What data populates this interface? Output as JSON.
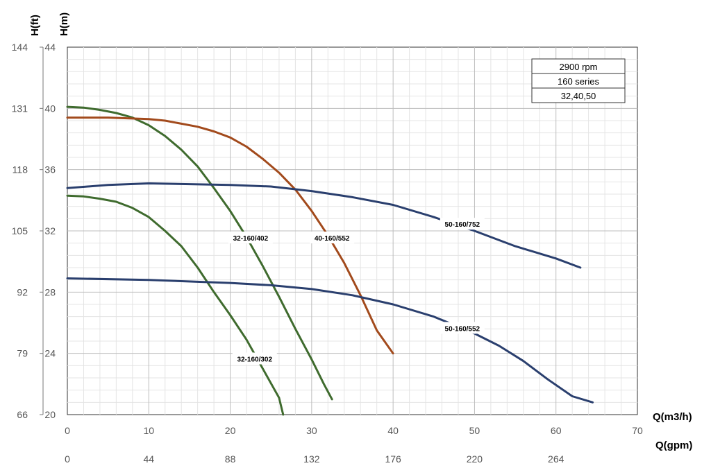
{
  "chart_data": {
    "type": "line",
    "x_axis_primary": {
      "label": "Q(m3/h)",
      "ticks": [
        "0",
        "10",
        "20",
        "30",
        "40",
        "50",
        "60",
        "70"
      ],
      "range": [
        0,
        70
      ]
    },
    "x_axis_secondary": {
      "label": "Q(gpm)",
      "ticks": [
        "0",
        "44",
        "88",
        "132",
        "176",
        "220",
        "264"
      ]
    },
    "y_axis_primary": {
      "label": "H(m)",
      "ticks": [
        "20",
        "24",
        "28",
        "32",
        "36",
        "40",
        "44"
      ],
      "range": [
        20,
        44
      ]
    },
    "y_axis_secondary": {
      "label": "H(ft)",
      "ticks": [
        "66",
        "79",
        "92",
        "105",
        "118",
        "131",
        "144"
      ]
    },
    "grid": true,
    "info_box": [
      "2900 rpm",
      "160 series",
      "32,40,50"
    ],
    "series": [
      {
        "name": "32-160/302",
        "color": "#3f6b2e",
        "points": [
          [
            0,
            34.3
          ],
          [
            2,
            34.25
          ],
          [
            4,
            34.1
          ],
          [
            6,
            33.9
          ],
          [
            8,
            33.5
          ],
          [
            10,
            32.9
          ],
          [
            12,
            32.0
          ],
          [
            14,
            31.0
          ],
          [
            16,
            29.6
          ],
          [
            18,
            28.0
          ],
          [
            20,
            26.5
          ],
          [
            22,
            24.9
          ],
          [
            24,
            23.0
          ],
          [
            26,
            21.1
          ],
          [
            26.5,
            20.0
          ]
        ]
      },
      {
        "name": "32-160/402",
        "color": "#3f6b2e",
        "points": [
          [
            0,
            40.1
          ],
          [
            2,
            40.05
          ],
          [
            4,
            39.9
          ],
          [
            6,
            39.7
          ],
          [
            8,
            39.4
          ],
          [
            10,
            38.9
          ],
          [
            12,
            38.2
          ],
          [
            14,
            37.3
          ],
          [
            16,
            36.2
          ],
          [
            18,
            34.8
          ],
          [
            20,
            33.3
          ],
          [
            22,
            31.6
          ],
          [
            24,
            29.7
          ],
          [
            26,
            27.7
          ],
          [
            28,
            25.6
          ],
          [
            30,
            23.6
          ],
          [
            31.5,
            22.0
          ],
          [
            32.5,
            21.0
          ]
        ]
      },
      {
        "name": "40-160/552",
        "color": "#a24a1c",
        "points": [
          [
            0,
            39.4
          ],
          [
            5,
            39.4
          ],
          [
            10,
            39.3
          ],
          [
            12,
            39.2
          ],
          [
            14,
            39.0
          ],
          [
            16,
            38.8
          ],
          [
            18,
            38.5
          ],
          [
            20,
            38.1
          ],
          [
            22,
            37.5
          ],
          [
            24,
            36.7
          ],
          [
            26,
            35.8
          ],
          [
            28,
            34.7
          ],
          [
            30,
            33.3
          ],
          [
            32,
            31.7
          ],
          [
            34,
            29.9
          ],
          [
            36,
            27.8
          ],
          [
            38,
            25.5
          ],
          [
            40,
            24.0
          ]
        ]
      },
      {
        "name": "50-160/552",
        "color": "#2a3f6e",
        "points": [
          [
            0,
            28.9
          ],
          [
            10,
            28.8
          ],
          [
            20,
            28.6
          ],
          [
            25,
            28.45
          ],
          [
            30,
            28.2
          ],
          [
            35,
            27.8
          ],
          [
            40,
            27.2
          ],
          [
            45,
            26.4
          ],
          [
            50,
            25.3
          ],
          [
            53,
            24.5
          ],
          [
            56,
            23.5
          ],
          [
            59,
            22.3
          ],
          [
            62,
            21.2
          ],
          [
            64.5,
            20.8
          ]
        ]
      },
      {
        "name": "50-160/752",
        "color": "#2a3f6e",
        "points": [
          [
            0,
            34.8
          ],
          [
            5,
            35.0
          ],
          [
            10,
            35.1
          ],
          [
            20,
            35.0
          ],
          [
            25,
            34.9
          ],
          [
            30,
            34.6
          ],
          [
            35,
            34.2
          ],
          [
            40,
            33.7
          ],
          [
            45,
            32.9
          ],
          [
            50,
            32.0
          ],
          [
            55,
            31.0
          ],
          [
            60,
            30.2
          ],
          [
            63,
            29.6
          ]
        ]
      }
    ],
    "labels": [
      {
        "text": "32-160/302",
        "x": 23.0,
        "y": 23.6
      },
      {
        "text": "32-160/402",
        "x": 22.5,
        "y": 31.5
      },
      {
        "text": "40-160/552",
        "x": 32.5,
        "y": 31.5
      },
      {
        "text": "50-160/552",
        "x": 48.5,
        "y": 25.6
      },
      {
        "text": "50-160/752",
        "x": 48.5,
        "y": 32.4
      }
    ]
  }
}
